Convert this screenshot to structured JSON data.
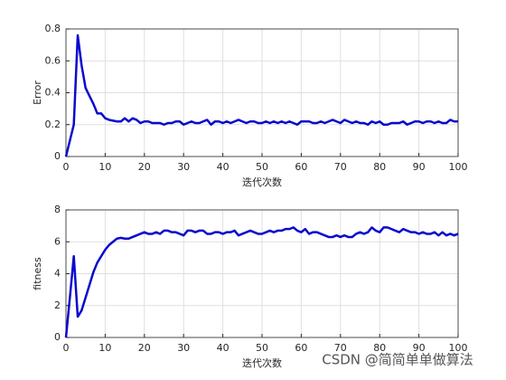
{
  "chart_data": [
    {
      "type": "line",
      "ylabel": "Error",
      "xlabel": "迭代次数",
      "x": [
        0,
        1,
        2,
        3,
        4,
        5,
        6,
        7,
        8,
        9,
        10,
        11,
        12,
        13,
        14,
        15,
        16,
        17,
        18,
        19,
        20,
        21,
        22,
        23,
        24,
        25,
        26,
        27,
        28,
        29,
        30,
        31,
        32,
        33,
        34,
        35,
        36,
        37,
        38,
        39,
        40,
        41,
        42,
        43,
        44,
        45,
        46,
        47,
        48,
        49,
        50,
        51,
        52,
        53,
        54,
        55,
        56,
        57,
        58,
        59,
        60,
        61,
        62,
        63,
        64,
        65,
        66,
        67,
        68,
        69,
        70,
        71,
        72,
        73,
        74,
        75,
        76,
        77,
        78,
        79,
        80,
        81,
        82,
        83,
        84,
        85,
        86,
        87,
        88,
        89,
        90,
        91,
        92,
        93,
        94,
        95,
        96,
        97,
        98,
        99,
        100
      ],
      "values": [
        0,
        0.1,
        0.2,
        0.76,
        0.57,
        0.43,
        0.38,
        0.33,
        0.27,
        0.27,
        0.24,
        0.23,
        0.225,
        0.22,
        0.22,
        0.24,
        0.22,
        0.24,
        0.23,
        0.21,
        0.22,
        0.22,
        0.21,
        0.21,
        0.21,
        0.2,
        0.21,
        0.21,
        0.22,
        0.22,
        0.2,
        0.21,
        0.22,
        0.21,
        0.21,
        0.22,
        0.23,
        0.2,
        0.22,
        0.22,
        0.21,
        0.22,
        0.21,
        0.22,
        0.23,
        0.22,
        0.21,
        0.22,
        0.22,
        0.21,
        0.21,
        0.22,
        0.21,
        0.22,
        0.21,
        0.22,
        0.21,
        0.22,
        0.21,
        0.2,
        0.22,
        0.22,
        0.22,
        0.21,
        0.21,
        0.22,
        0.21,
        0.22,
        0.23,
        0.22,
        0.21,
        0.23,
        0.22,
        0.21,
        0.22,
        0.21,
        0.21,
        0.2,
        0.22,
        0.21,
        0.22,
        0.2,
        0.2,
        0.21,
        0.21,
        0.21,
        0.22,
        0.2,
        0.21,
        0.22,
        0.22,
        0.21,
        0.22,
        0.22,
        0.21,
        0.22,
        0.21,
        0.21,
        0.23,
        0.22,
        0.22
      ],
      "color": "#0a0acd",
      "xlim": [
        0,
        100
      ],
      "xticks": [
        0,
        10,
        20,
        30,
        40,
        50,
        60,
        70,
        80,
        90,
        100
      ],
      "ylim": [
        0,
        0.8
      ],
      "yticks": [
        0,
        0.2,
        0.4,
        0.6,
        0.8
      ],
      "grid": true
    },
    {
      "type": "line",
      "ylabel": "fitness",
      "xlabel": "迭代次数",
      "x": [
        0,
        1,
        2,
        3,
        4,
        5,
        6,
        7,
        8,
        9,
        10,
        11,
        12,
        13,
        14,
        15,
        16,
        17,
        18,
        19,
        20,
        21,
        22,
        23,
        24,
        25,
        26,
        27,
        28,
        29,
        30,
        31,
        32,
        33,
        34,
        35,
        36,
        37,
        38,
        39,
        40,
        41,
        42,
        43,
        44,
        45,
        46,
        47,
        48,
        49,
        50,
        51,
        52,
        53,
        54,
        55,
        56,
        57,
        58,
        59,
        60,
        61,
        62,
        63,
        64,
        65,
        66,
        67,
        68,
        69,
        70,
        71,
        72,
        73,
        74,
        75,
        76,
        77,
        78,
        79,
        80,
        81,
        82,
        83,
        84,
        85,
        86,
        87,
        88,
        89,
        90,
        91,
        92,
        93,
        94,
        95,
        96,
        97,
        98,
        99,
        100
      ],
      "values": [
        0,
        2.5,
        5.1,
        1.3,
        1.7,
        2.5,
        3.3,
        4.1,
        4.7,
        5.1,
        5.5,
        5.8,
        6.0,
        6.2,
        6.25,
        6.2,
        6.2,
        6.3,
        6.4,
        6.5,
        6.6,
        6.5,
        6.5,
        6.6,
        6.5,
        6.7,
        6.7,
        6.6,
        6.6,
        6.5,
        6.4,
        6.7,
        6.7,
        6.6,
        6.7,
        6.7,
        6.5,
        6.5,
        6.6,
        6.6,
        6.5,
        6.6,
        6.6,
        6.7,
        6.4,
        6.5,
        6.6,
        6.7,
        6.6,
        6.5,
        6.5,
        6.6,
        6.7,
        6.6,
        6.7,
        6.7,
        6.8,
        6.8,
        6.9,
        6.7,
        6.6,
        6.8,
        6.5,
        6.6,
        6.6,
        6.5,
        6.4,
        6.3,
        6.3,
        6.4,
        6.3,
        6.4,
        6.3,
        6.3,
        6.5,
        6.6,
        6.5,
        6.6,
        6.9,
        6.7,
        6.6,
        6.9,
        6.9,
        6.8,
        6.7,
        6.6,
        6.8,
        6.7,
        6.6,
        6.6,
        6.5,
        6.6,
        6.5,
        6.5,
        6.6,
        6.4,
        6.6,
        6.4,
        6.5,
        6.4,
        6.5
      ],
      "color": "#0a0acd",
      "xlim": [
        0,
        100
      ],
      "xticks": [
        0,
        10,
        20,
        30,
        40,
        50,
        60,
        70,
        80,
        90,
        100
      ],
      "ylim": [
        0,
        8
      ],
      "yticks": [
        0,
        2,
        4,
        6,
        8
      ],
      "grid": true
    }
  ],
  "watermark": "CSDN @简简单单做算法"
}
